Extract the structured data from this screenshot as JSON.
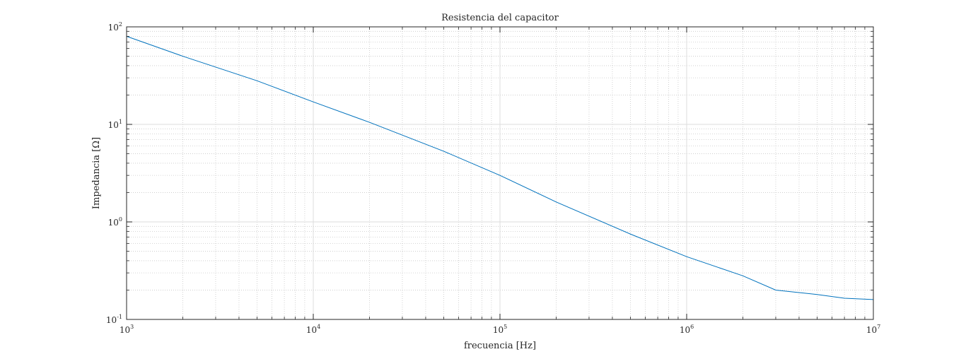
{
  "chart_data": {
    "type": "line",
    "title": "Resistencia del capacitor",
    "xlabel": "frecuencia [Hz]",
    "ylabel": "Impedancia [Ω]",
    "x_scale": "log",
    "y_scale": "log",
    "xlim": [
      1000,
      10000000
    ],
    "ylim": [
      0.1,
      100
    ],
    "grid": true,
    "minor_grid": true,
    "x_ticks": [
      {
        "base": "10",
        "exp": "3",
        "value": 1000
      },
      {
        "base": "10",
        "exp": "4",
        "value": 10000
      },
      {
        "base": "10",
        "exp": "5",
        "value": 100000
      },
      {
        "base": "10",
        "exp": "6",
        "value": 1000000
      },
      {
        "base": "10",
        "exp": "7",
        "value": 10000000
      }
    ],
    "y_ticks": [
      {
        "base": "10",
        "exp": "-1",
        "value": 0.1
      },
      {
        "base": "10",
        "exp": "0",
        "value": 1
      },
      {
        "base": "10",
        "exp": "1",
        "value": 10
      },
      {
        "base": "10",
        "exp": "2",
        "value": 100
      }
    ],
    "series": [
      {
        "color": "#0072bd",
        "x": [
          1000,
          2000,
          5000,
          10000,
          20000,
          50000,
          100000,
          200000,
          500000,
          1000000,
          2000000,
          3000000,
          5000000,
          7000000,
          10000000
        ],
        "y": [
          80,
          50,
          28,
          17,
          10.5,
          5.3,
          3.0,
          1.6,
          0.75,
          0.44,
          0.28,
          0.2,
          0.18,
          0.165,
          0.16
        ]
      }
    ]
  }
}
